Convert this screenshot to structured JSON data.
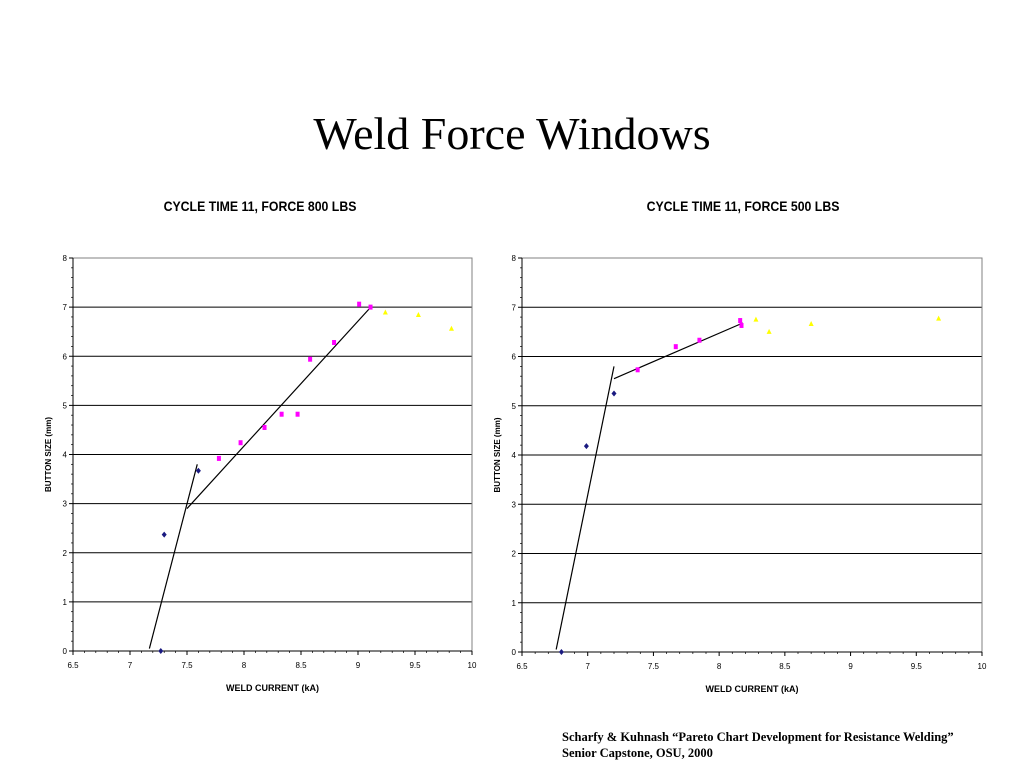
{
  "slide": {
    "title": "Weld Force Windows",
    "citation_line1": "Scharfy & Kuhnash “Pareto Chart Development for Resistance  Welding”",
    "citation_line2": "Senior Capstone, OSU, 2000"
  },
  "colors": {
    "blue": "#1a1a80",
    "magenta": "#ff00ff",
    "yellow": "#ffff00",
    "line": "#000000",
    "grid": "#000000"
  },
  "chart_data": [
    {
      "type": "scatter",
      "title": "CYCLE TIME 11, FORCE 800 LBS",
      "xlabel": "WELD CURRENT (kA)",
      "ylabel": "BUTTON SIZE (mm)",
      "xlim": [
        6.5,
        10
      ],
      "ylim": [
        0,
        8
      ],
      "x_ticks": [
        "6.5",
        "7",
        "7.5",
        "8",
        "8.5",
        "9",
        "9.5",
        "10"
      ],
      "y_ticks": [
        "0",
        "1",
        "2",
        "3",
        "4",
        "5",
        "6",
        "7",
        "8"
      ],
      "grid": "horizontal",
      "legend": "none",
      "series": [
        {
          "marker": "diamond",
          "color": "blue",
          "points": [
            [
              7.27,
              0.0
            ],
            [
              7.3,
              2.37
            ],
            [
              7.6,
              3.67
            ]
          ]
        },
        {
          "marker": "square",
          "color": "magenta",
          "points": [
            [
              7.78,
              3.92
            ],
            [
              7.97,
              4.24
            ],
            [
              8.18,
              4.55
            ],
            [
              8.33,
              4.82
            ],
            [
              8.47,
              4.82
            ],
            [
              8.58,
              5.94
            ],
            [
              8.79,
              6.28
            ],
            [
              9.01,
              7.06
            ],
            [
              9.11,
              7.0
            ]
          ]
        },
        {
          "marker": "triangle",
          "color": "yellow",
          "points": [
            [
              9.24,
              6.89
            ],
            [
              9.53,
              6.84
            ],
            [
              9.82,
              6.56
            ]
          ]
        }
      ],
      "trendlines": [
        [
          [
            7.17,
            0.05
          ],
          [
            7.59,
            3.8
          ]
        ],
        [
          [
            7.5,
            2.9
          ],
          [
            9.12,
            7.02
          ]
        ]
      ]
    },
    {
      "type": "scatter",
      "title": "CYCLE TIME 11, FORCE 500 LBS",
      "xlabel": "WELD CURRENT (kA)",
      "ylabel": "BUTTON SIZE (mm)",
      "xlim": [
        6.5,
        10
      ],
      "ylim": [
        0,
        8
      ],
      "x_ticks": [
        "6.5",
        "7",
        "7.5",
        "8",
        "8.5",
        "9",
        "9.5",
        "10"
      ],
      "y_ticks": [
        "0",
        "1",
        "2",
        "3",
        "4",
        "5",
        "6",
        "7",
        "8"
      ],
      "grid": "horizontal",
      "legend": "none",
      "series": [
        {
          "marker": "diamond",
          "color": "blue",
          "points": [
            [
              6.8,
              0.0
            ],
            [
              6.99,
              4.18
            ],
            [
              7.2,
              5.25
            ]
          ]
        },
        {
          "marker": "square",
          "color": "magenta",
          "points": [
            [
              7.38,
              5.73
            ],
            [
              7.67,
              6.2
            ],
            [
              7.85,
              6.33
            ],
            [
              8.16,
              6.73
            ],
            [
              8.17,
              6.63
            ]
          ]
        },
        {
          "marker": "triangle",
          "color": "yellow",
          "points": [
            [
              8.28,
              6.75
            ],
            [
              8.38,
              6.5
            ],
            [
              8.7,
              6.66
            ],
            [
              9.67,
              6.77
            ]
          ]
        }
      ],
      "trendlines": [
        [
          [
            6.76,
            0.05
          ],
          [
            7.2,
            5.8
          ]
        ],
        [
          [
            7.2,
            5.55
          ],
          [
            8.18,
            6.68
          ]
        ]
      ]
    }
  ]
}
